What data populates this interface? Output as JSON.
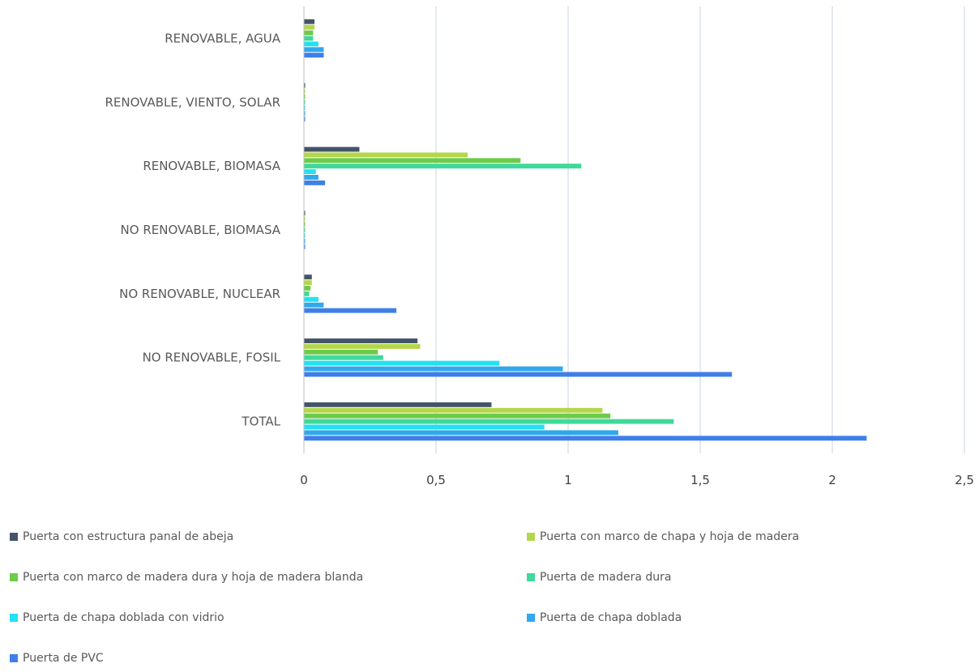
{
  "chart_data": {
    "type": "bar",
    "orientation": "horizontal",
    "categories": [
      "RENOVABLE, AGUA",
      "RENOVABLE, VIENTO, SOLAR",
      "RENOVABLE, BIOMASA",
      "NO RENOVABLE, BIOMASA",
      "NO RENOVABLE, NUCLEAR",
      "NO RENOVABLE, FOSIL",
      "TOTAL"
    ],
    "series": [
      {
        "name": "Puerta con estructura panal de abeja",
        "color": "#44546A",
        "values": [
          0.04,
          0.004,
          0.21,
          0.004,
          0.03,
          0.43,
          0.71
        ]
      },
      {
        "name": "Puerta con marco de chapa y hoja de madera",
        "color": "#B4D64A",
        "values": [
          0.04,
          0.004,
          0.62,
          0.004,
          0.03,
          0.44,
          1.13
        ]
      },
      {
        "name": "Puerta con marco de madera dura y hoja de madera blanda",
        "color": "#6DCB4B",
        "values": [
          0.035,
          0.004,
          0.82,
          0.004,
          0.025,
          0.28,
          1.16
        ]
      },
      {
        "name": "Puerta de madera dura",
        "color": "#3FD99A",
        "values": [
          0.035,
          0.004,
          1.05,
          0.004,
          0.02,
          0.3,
          1.4
        ]
      },
      {
        "name": "Puerta de chapa doblada con vidrio",
        "color": "#22E0F5",
        "values": [
          0.055,
          0.004,
          0.045,
          0.004,
          0.055,
          0.74,
          0.91
        ]
      },
      {
        "name": "Puerta de chapa doblada",
        "color": "#2FA8EE",
        "values": [
          0.075,
          0.004,
          0.055,
          0.004,
          0.075,
          0.98,
          1.19
        ]
      },
      {
        "name": "Puerta de PVC",
        "color": "#3F7FE8",
        "values": [
          0.075,
          0.004,
          0.08,
          0.004,
          0.35,
          1.62,
          2.13
        ]
      }
    ],
    "xlim": [
      0,
      2.5
    ],
    "xticks": [
      "0",
      "0,5",
      "1",
      "1,5",
      "2",
      "2,5"
    ],
    "grid": true,
    "legend_position": "bottom"
  }
}
